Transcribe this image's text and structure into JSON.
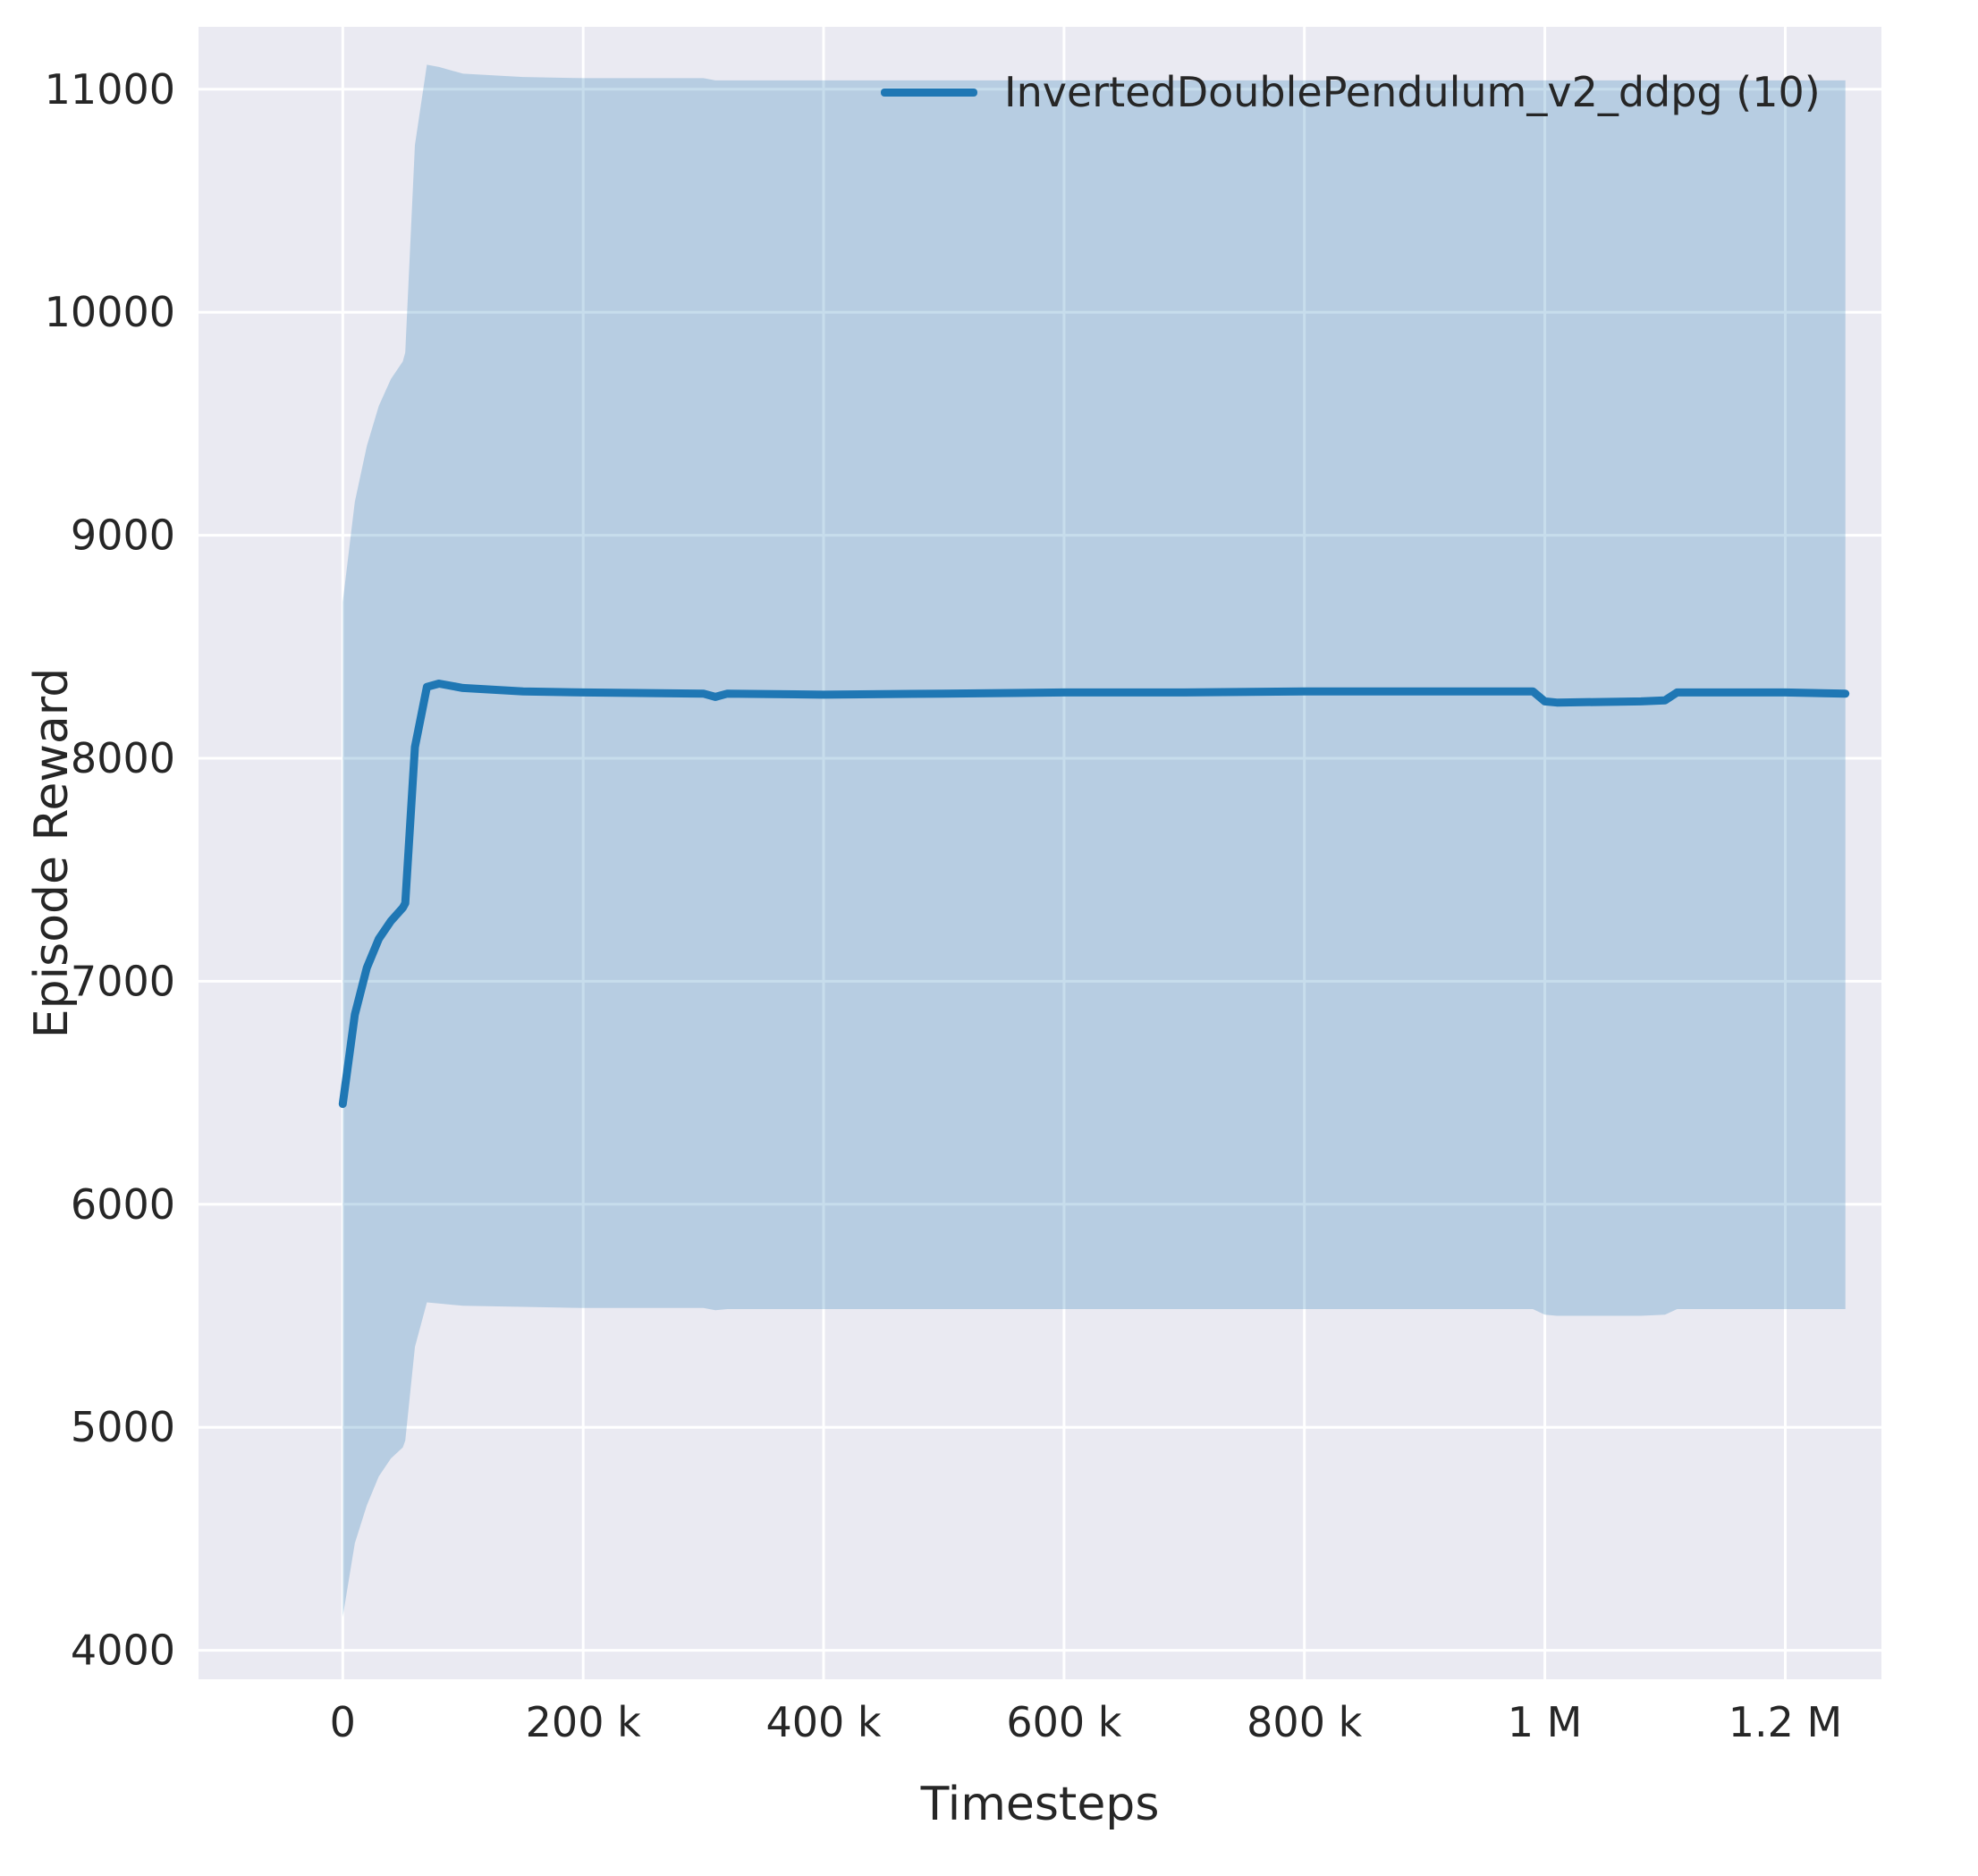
{
  "figure": {
    "background": "#ffffff",
    "axes_background": "#eaeaf2",
    "grid_color": "#ffffff",
    "text_color": "#262626"
  },
  "legend": {
    "label": "InvertedDoublePendulum_v2_ddpg (10)",
    "color": "#1f77b4"
  },
  "chart_data": {
    "type": "line",
    "title": "",
    "xlabel": "Timesteps",
    "ylabel": "Episode Reward",
    "xlim": [
      -120000,
      1280000
    ],
    "ylim": [
      3870,
      11280
    ],
    "grid": true,
    "legend_position": "upper right",
    "x_ticks": [
      {
        "value": 0,
        "label": "0"
      },
      {
        "value": 200000,
        "label": "200 k"
      },
      {
        "value": 400000,
        "label": "400 k"
      },
      {
        "value": 600000,
        "label": "600 k"
      },
      {
        "value": 800000,
        "label": "800 k"
      },
      {
        "value": 1000000,
        "label": "1 M"
      },
      {
        "value": 1200000,
        "label": "1.2 M"
      }
    ],
    "y_ticks": [
      {
        "value": 4000,
        "label": "4000"
      },
      {
        "value": 5000,
        "label": "5000"
      },
      {
        "value": 6000,
        "label": "6000"
      },
      {
        "value": 7000,
        "label": "7000"
      },
      {
        "value": 8000,
        "label": "8000"
      },
      {
        "value": 9000,
        "label": "9000"
      },
      {
        "value": 10000,
        "label": "10000"
      },
      {
        "value": 11000,
        "label": "11000"
      }
    ],
    "series": [
      {
        "name": "InvertedDoublePendulum_v2_ddpg (10)",
        "color": "#1f77b4",
        "band_alpha": 0.25,
        "x": [
          0,
          10000,
          20000,
          30000,
          40000,
          50000,
          52000,
          60000,
          70000,
          80000,
          100000,
          150000,
          200000,
          300000,
          310000,
          320000,
          400000,
          500000,
          600000,
          700000,
          800000,
          900000,
          990000,
          1000000,
          1010000,
          1080000,
          1100000,
          1110000,
          1150000,
          1200000,
          1250000
        ],
        "mean": [
          6450,
          6850,
          7060,
          7190,
          7270,
          7330,
          7350,
          8050,
          8320,
          8335,
          8315,
          8300,
          8295,
          8290,
          8275,
          8290,
          8285,
          8290,
          8295,
          8295,
          8300,
          8300,
          8300,
          8255,
          8250,
          8255,
          8260,
          8295,
          8295,
          8295,
          8290
        ],
        "band_upper": [
          8700,
          9150,
          9400,
          9580,
          9700,
          9780,
          9820,
          10750,
          11110,
          11100,
          11070,
          11055,
          11050,
          11050,
          11040,
          11040,
          11040,
          11040,
          11040,
          11040,
          11040,
          11040,
          11040,
          11040,
          11040,
          11040,
          11040,
          11040,
          11040,
          11040,
          11040
        ],
        "band_lower": [
          4150,
          4480,
          4650,
          4780,
          4860,
          4910,
          4940,
          5360,
          5560,
          5555,
          5545,
          5540,
          5535,
          5535,
          5525,
          5530,
          5530,
          5530,
          5530,
          5530,
          5530,
          5530,
          5530,
          5505,
          5500,
          5500,
          5505,
          5530,
          5530,
          5530,
          5530
        ]
      }
    ]
  }
}
